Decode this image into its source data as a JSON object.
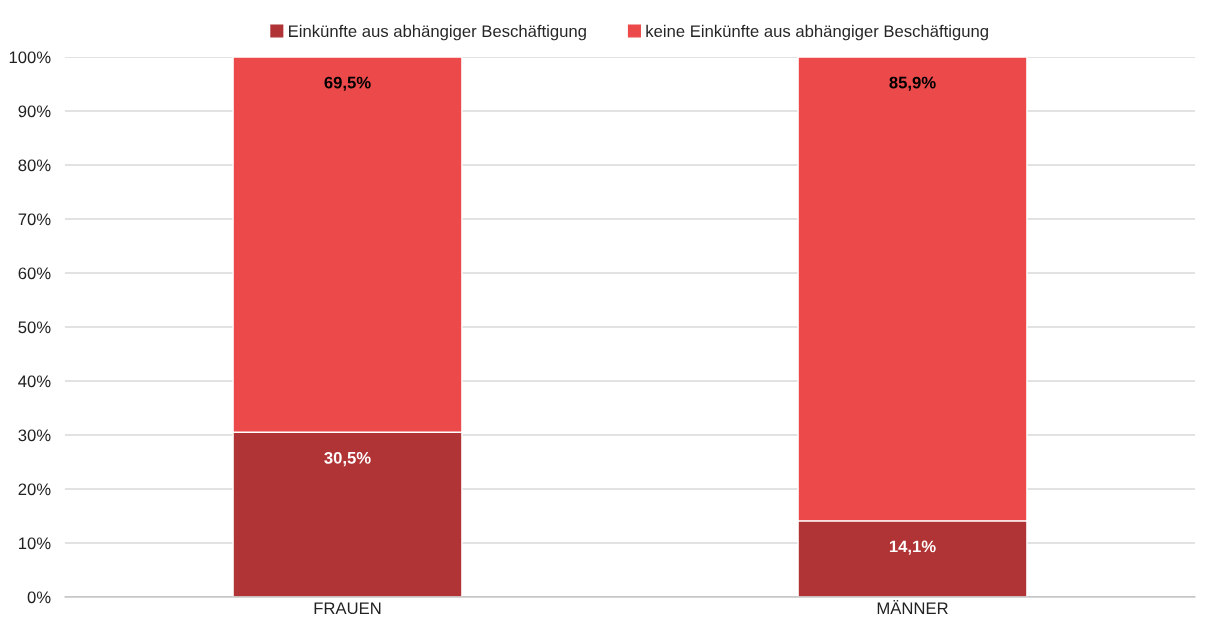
{
  "chart_data": {
    "type": "bar",
    "stacked": true,
    "categories": [
      "FRAUEN",
      "MÄNNER"
    ],
    "series": [
      {
        "name": "Einkünfte aus abhängiger Beschäftigung",
        "color": "#b03335",
        "values": [
          30.5,
          14.1
        ],
        "value_labels": [
          "30,5%",
          "14,1%"
        ]
      },
      {
        "name": "keine Einkünfte aus abhängiger Beschäftigung",
        "color": "#ec4a4a",
        "values": [
          69.5,
          85.9
        ],
        "value_labels": [
          "69,5%",
          "85,9%"
        ]
      }
    ],
    "ylim": [
      0,
      100
    ],
    "yticks": [
      {
        "value": 0,
        "label": "0%"
      },
      {
        "value": 10,
        "label": "10%"
      },
      {
        "value": 20,
        "label": "20%"
      },
      {
        "value": 30,
        "label": "30%"
      },
      {
        "value": 40,
        "label": "40%"
      },
      {
        "value": 50,
        "label": "50%"
      },
      {
        "value": 60,
        "label": "60%"
      },
      {
        "value": 70,
        "label": "70%"
      },
      {
        "value": 80,
        "label": "80%"
      },
      {
        "value": 90,
        "label": "90%"
      },
      {
        "value": 100,
        "label": "100%"
      }
    ],
    "grid": "y",
    "legend": "top"
  }
}
